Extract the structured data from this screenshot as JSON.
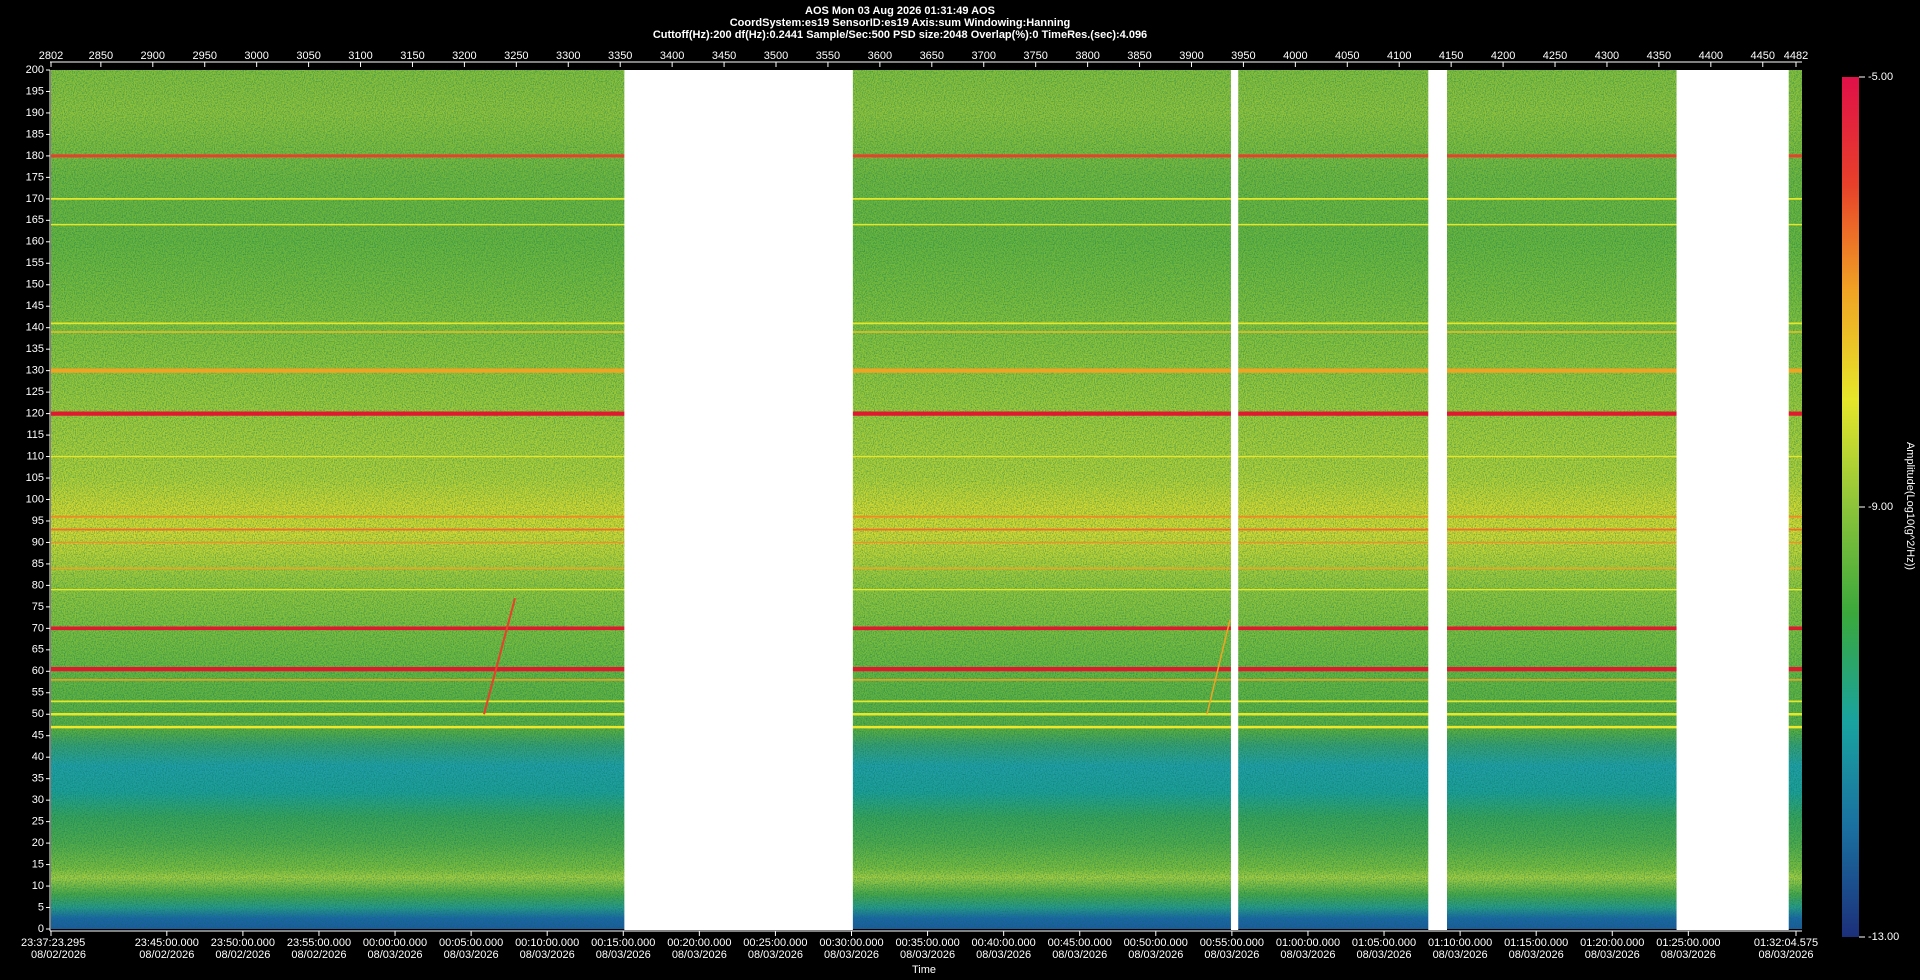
{
  "chart_data": {
    "type": "spectrogram",
    "header": [
      "AOS  Mon 03 Aug 2026 01:31:49  AOS",
      "CoordSystem:es19    SensorID:es19     Axis:sum     Windowing:Hanning",
      "Cuttoff(Hz):200      df(Hz):0.2441      Sample/Sec:500      PSD size:2048      Overlap(%):0      TimeRes.(sec):4.096"
    ],
    "xlim": [
      2802,
      4482
    ],
    "xticks": [
      2802,
      2850,
      2900,
      2950,
      3000,
      3050,
      3100,
      3150,
      3200,
      3250,
      3300,
      3350,
      3400,
      3450,
      3500,
      3550,
      3600,
      3650,
      3700,
      3750,
      3800,
      3850,
      3900,
      3950,
      4000,
      4050,
      4100,
      4150,
      4200,
      4250,
      4300,
      4350,
      4400,
      4450,
      4482
    ],
    "ylim": [
      0,
      200
    ],
    "yticks": [
      0,
      5,
      10,
      15,
      20,
      25,
      30,
      35,
      40,
      45,
      50,
      55,
      60,
      65,
      70,
      75,
      80,
      85,
      90,
      95,
      100,
      105,
      110,
      115,
      120,
      125,
      130,
      135,
      140,
      145,
      150,
      155,
      160,
      165,
      170,
      175,
      180,
      185,
      190,
      195,
      200
    ],
    "x_label": "Time",
    "time_ticks": [
      {
        "label": "23:37:23.295",
        "date": "08/02/2026"
      },
      {
        "label": "23:45:00.000",
        "date": "08/02/2026"
      },
      {
        "label": "23:50:00.000",
        "date": "08/02/2026"
      },
      {
        "label": "23:55:00.000",
        "date": "08/02/2026"
      },
      {
        "label": "00:00:00.000",
        "date": "08/03/2026"
      },
      {
        "label": "00:05:00.000",
        "date": "08/03/2026"
      },
      {
        "label": "00:10:00.000",
        "date": "08/03/2026"
      },
      {
        "label": "00:15:00.000",
        "date": "08/03/2026"
      },
      {
        "label": "00:20:00.000",
        "date": "08/03/2026"
      },
      {
        "label": "00:25:00.000",
        "date": "08/03/2026"
      },
      {
        "label": "00:30:00.000",
        "date": "08/03/2026"
      },
      {
        "label": "00:35:00.000",
        "date": "08/03/2026"
      },
      {
        "label": "00:40:00.000",
        "date": "08/03/2026"
      },
      {
        "label": "00:45:00.000",
        "date": "08/03/2026"
      },
      {
        "label": "00:50:00.000",
        "date": "08/03/2026"
      },
      {
        "label": "00:55:00.000",
        "date": "08/03/2026"
      },
      {
        "label": "01:00:00.000",
        "date": "08/03/2026"
      },
      {
        "label": "01:05:00.000",
        "date": "08/03/2026"
      },
      {
        "label": "01:10:00.000",
        "date": "08/03/2026"
      },
      {
        "label": "01:15:00.000",
        "date": "08/03/2026"
      },
      {
        "label": "01:20:00.000",
        "date": "08/03/2026"
      },
      {
        "label": "01:25:00.000",
        "date": "08/03/2026"
      },
      {
        "label": "01:32:04.575",
        "date": "08/03/2026"
      }
    ],
    "colorbar_label": "Amplitude(Log10(g^2/Hz))",
    "clim": [
      -13,
      -5
    ],
    "cticks": [
      {
        "value": -13,
        "label": "-13.00"
      },
      {
        "value": -9,
        "label": "-9.00"
      },
      {
        "value": -5,
        "label": "-5.00"
      }
    ],
    "colormap": [
      "#1c2f7a",
      "#1a6fa0",
      "#19a3a0",
      "#3aa83c",
      "#8cc43a",
      "#e6e62a",
      "#f0a424",
      "#e8402a",
      "#e01048"
    ]
  }
}
